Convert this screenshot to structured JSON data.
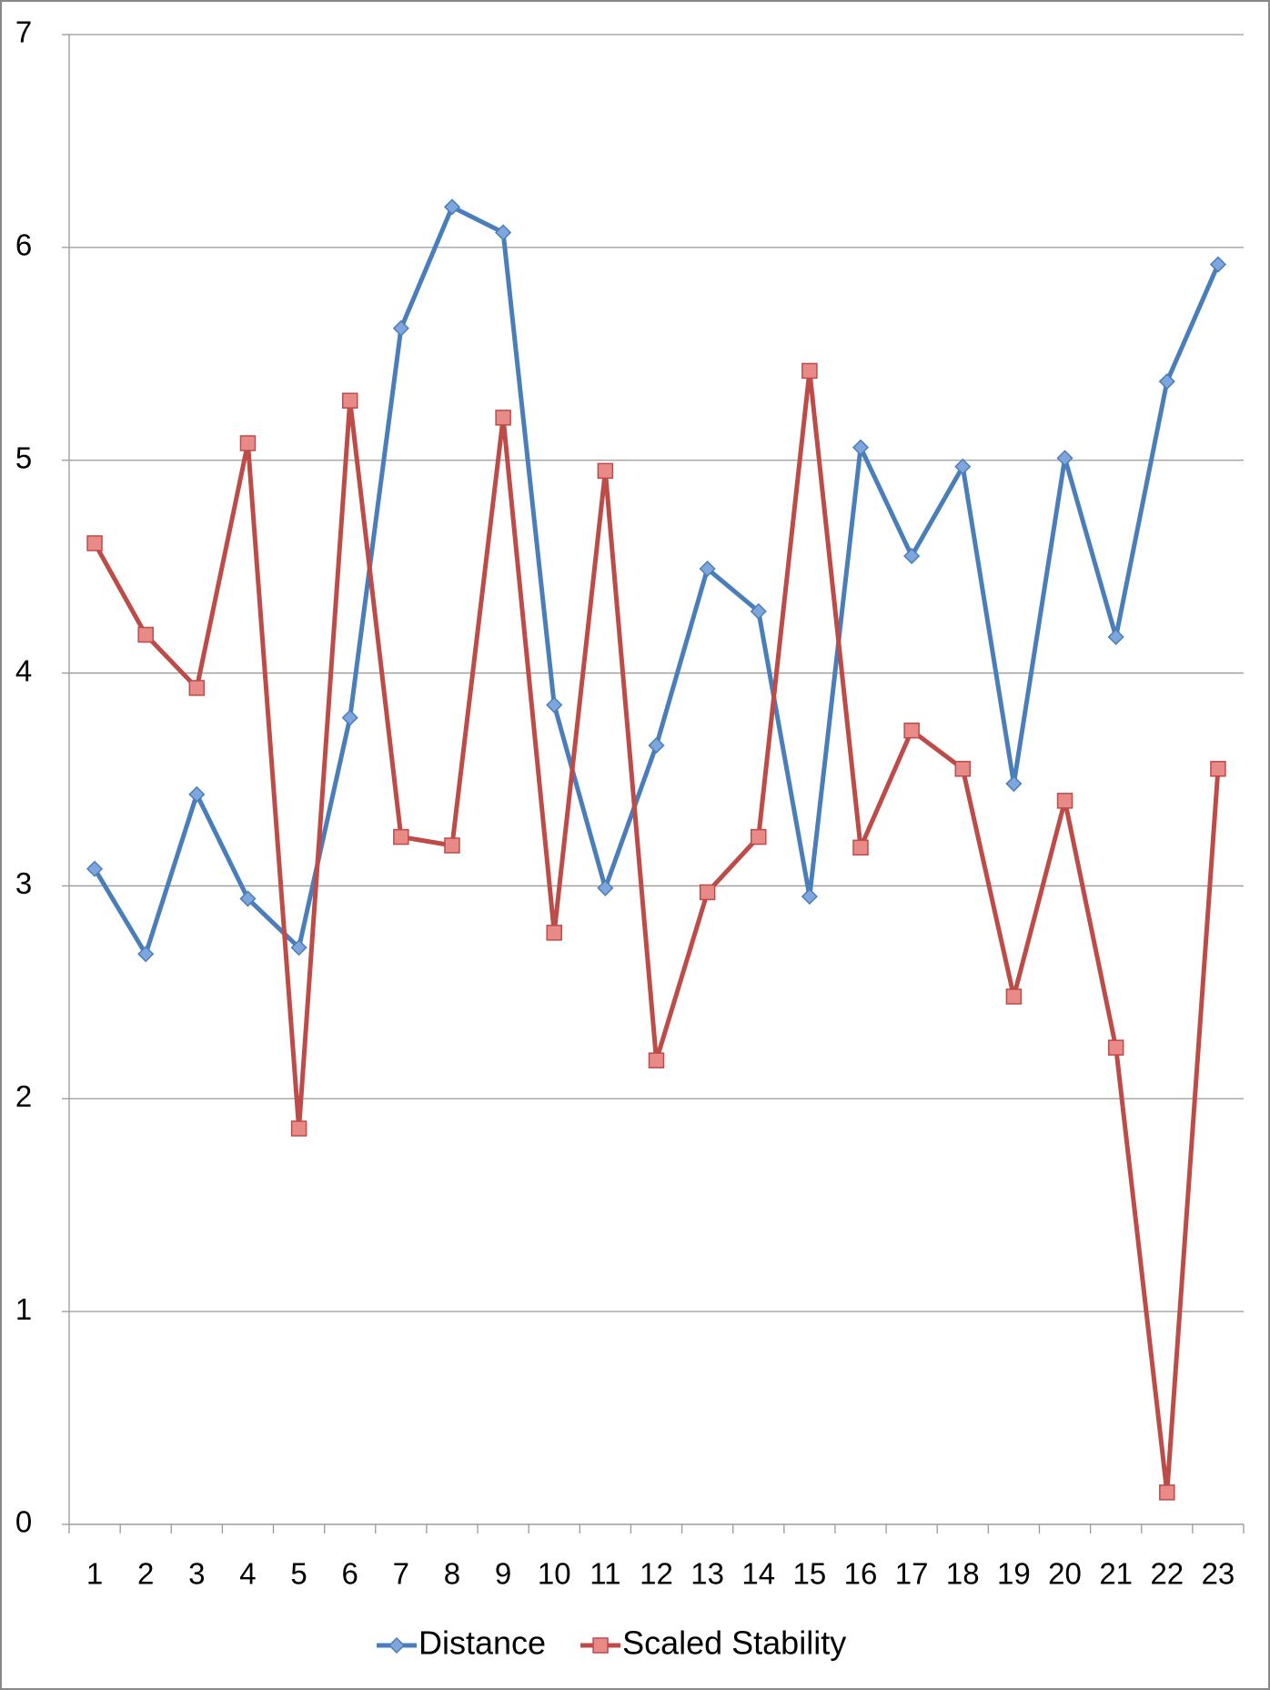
{
  "chart_data": {
    "type": "line",
    "categories": [
      "1",
      "2",
      "3",
      "4",
      "5",
      "6",
      "7",
      "8",
      "9",
      "10",
      "11",
      "12",
      "13",
      "14",
      "15",
      "16",
      "17",
      "18",
      "19",
      "20",
      "21",
      "22",
      "23"
    ],
    "series": [
      {
        "name": "Distance",
        "color": "#4a7ebb",
        "marker": "diamond",
        "values": [
          3.08,
          2.68,
          3.43,
          2.94,
          2.71,
          3.79,
          5.62,
          6.19,
          6.07,
          3.85,
          2.99,
          3.66,
          4.49,
          4.29,
          2.95,
          5.06,
          4.55,
          4.97,
          3.48,
          5.01,
          4.17,
          5.37,
          5.92
        ]
      },
      {
        "name": "Scaled Stability",
        "color": "#be4b48",
        "marker": "square",
        "values": [
          4.61,
          4.18,
          3.93,
          5.08,
          1.86,
          5.28,
          3.23,
          3.19,
          5.2,
          2.78,
          4.95,
          2.18,
          2.97,
          3.23,
          5.42,
          3.18,
          3.73,
          3.55,
          2.48,
          3.4,
          2.24,
          0.15,
          3.55
        ]
      }
    ],
    "ylim": [
      0,
      7
    ],
    "yticks": [
      0,
      1,
      2,
      3,
      4,
      5,
      6,
      7
    ],
    "grid": true,
    "legend": "bottom"
  }
}
